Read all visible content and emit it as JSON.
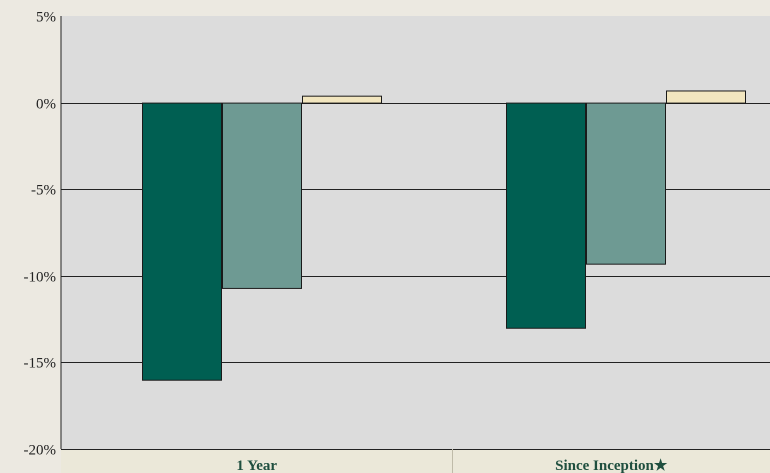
{
  "chart_data": {
    "type": "bar",
    "categories": [
      "1 Year",
      "Since Inception★"
    ],
    "series": [
      {
        "values": [
          -16.0,
          -13.0
        ],
        "color": "#005f52"
      },
      {
        "values": [
          -10.7,
          -9.3
        ],
        "color": "#6e9a93"
      },
      {
        "values": [
          0.4,
          0.7
        ],
        "color": "#f2e6bf"
      }
    ],
    "ylim": [
      -20,
      5
    ],
    "yticks": [
      5,
      0,
      -5,
      -10,
      -15,
      -20
    ],
    "ytick_labels": [
      "5%",
      "0%",
      "-5%",
      "-10%",
      "-15%",
      "-20%"
    ],
    "grid": true,
    "title": "",
    "xlabel": "",
    "ylabel": ""
  },
  "colors": {
    "background": "#ece9e1",
    "plot_background": "#dcdcdc",
    "category_band": "#ebe8d9",
    "gridline": "#222222"
  }
}
